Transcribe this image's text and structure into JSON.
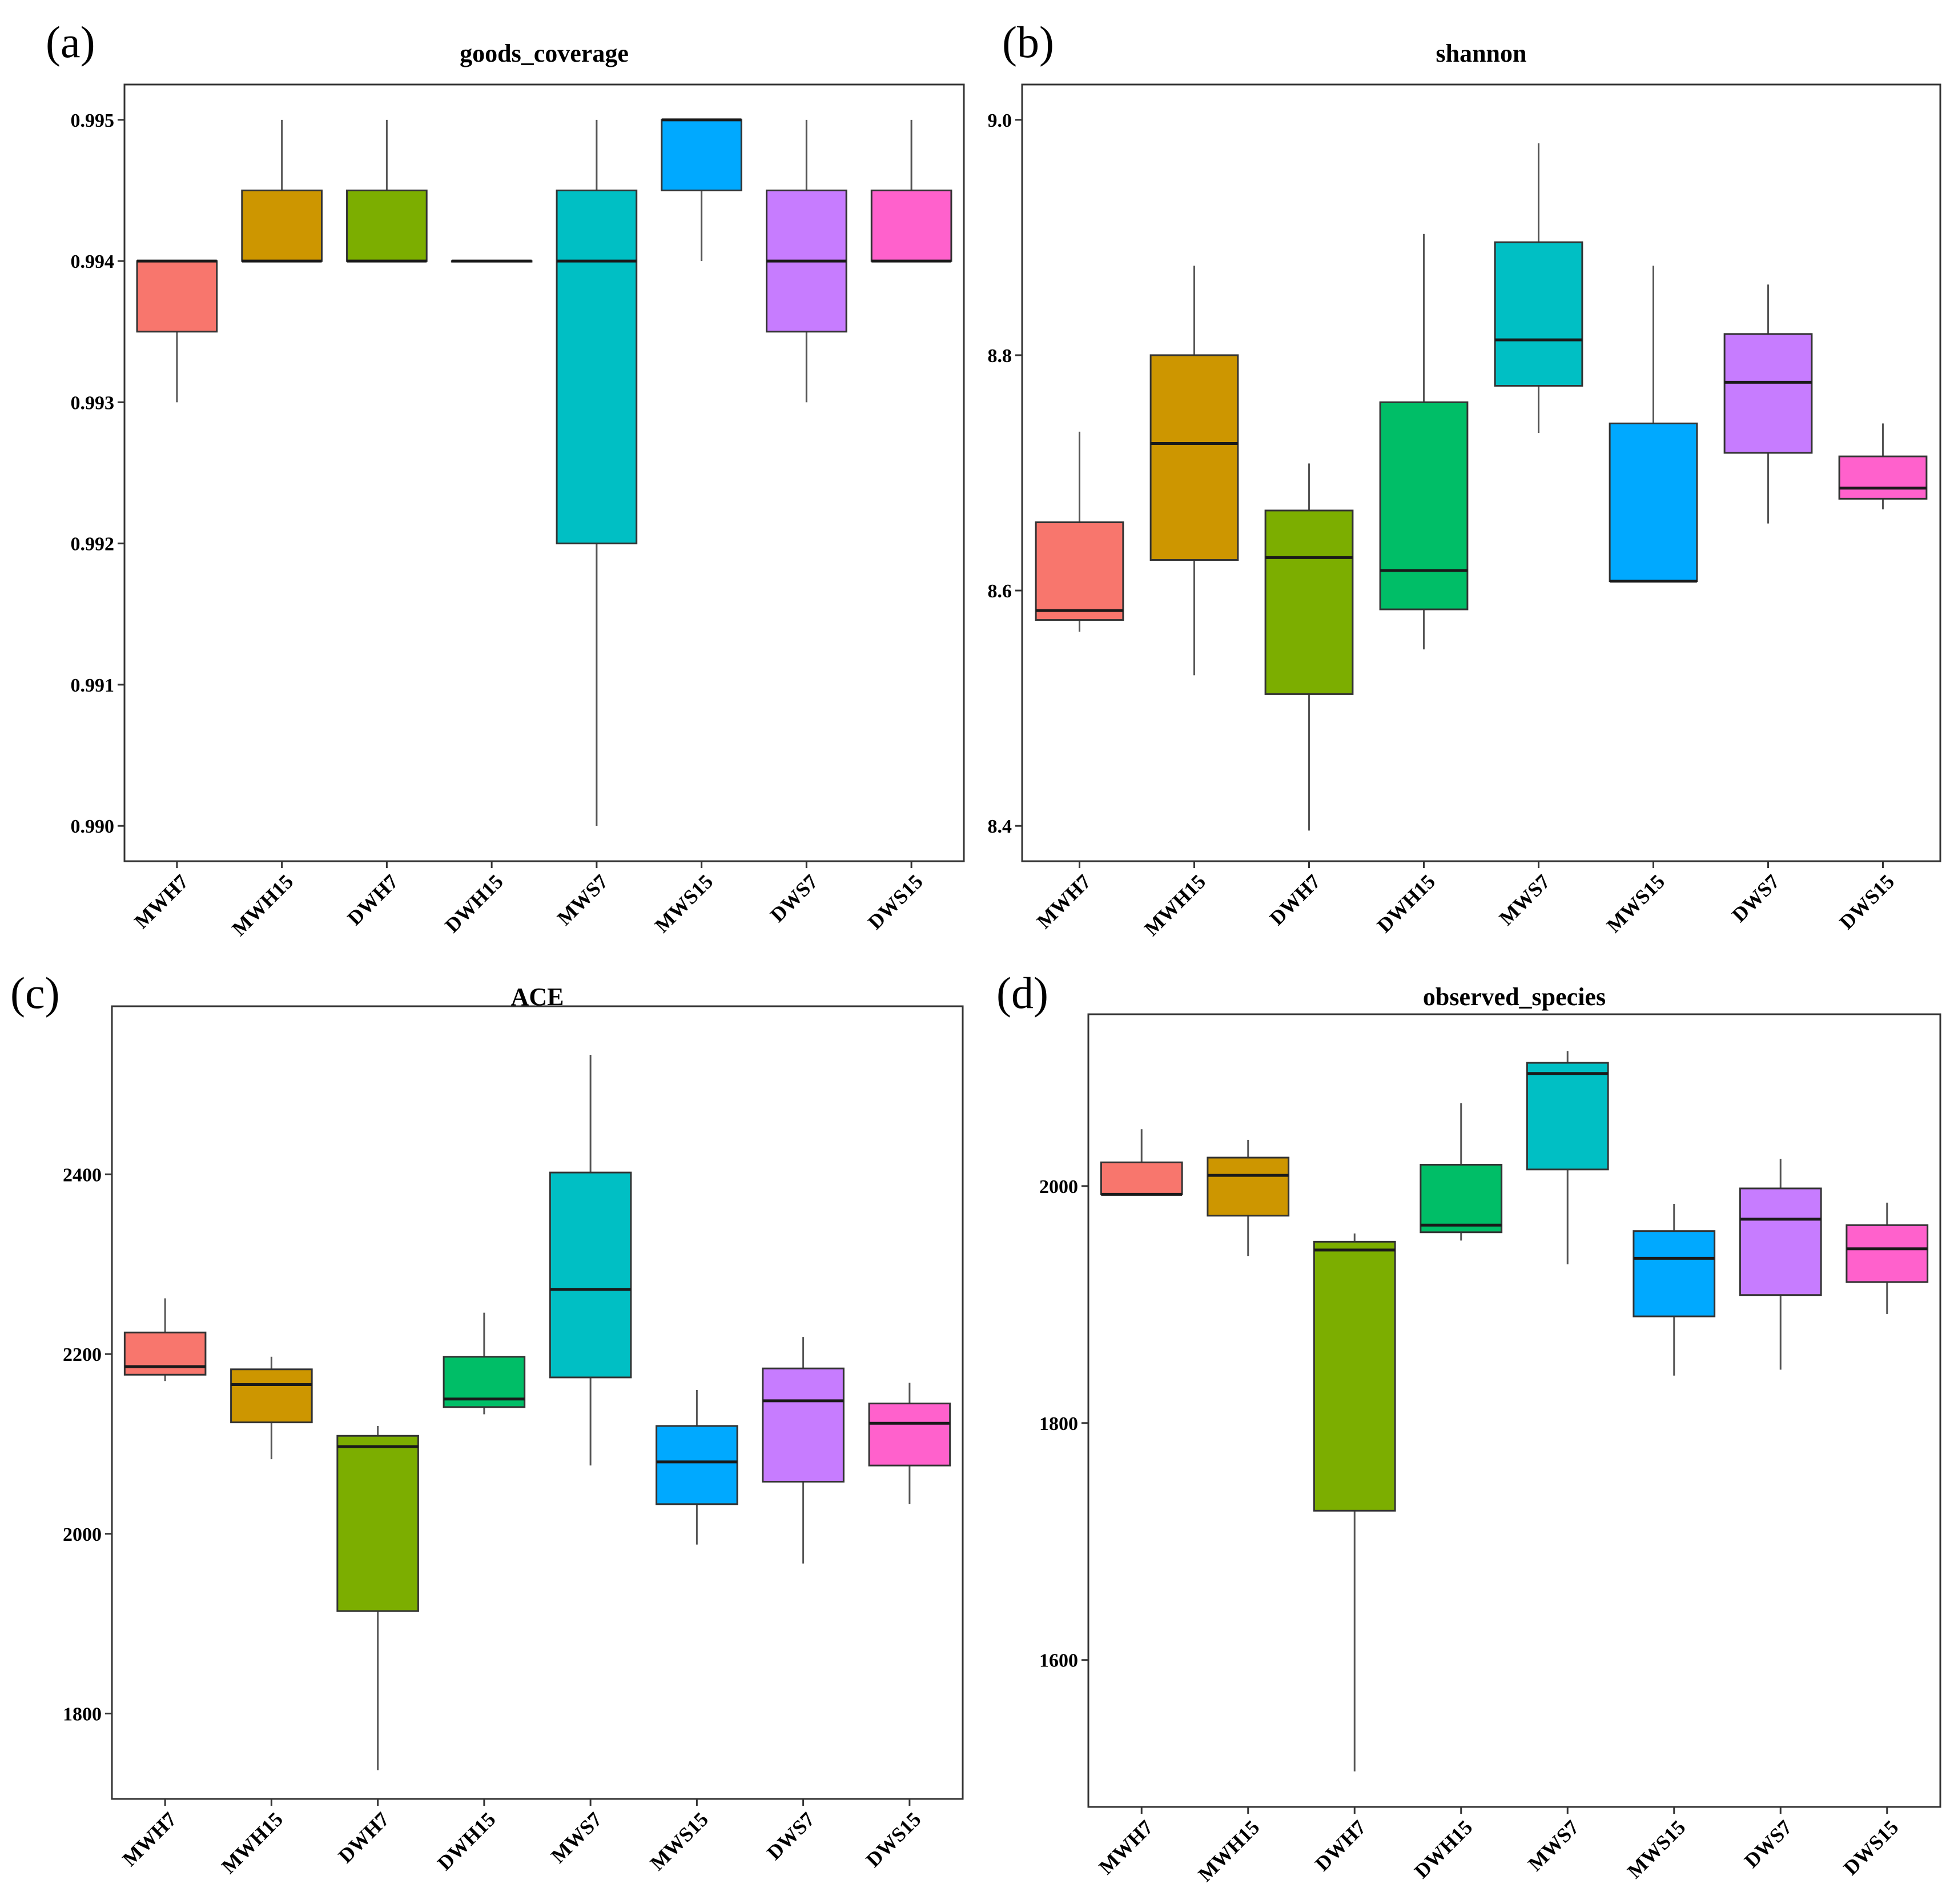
{
  "colors": {
    "MWH7": "#F8766D",
    "MWH15": "#CD9600",
    "DWH7": "#7CAE00",
    "DWH15": "#00BE67",
    "MWS7": "#00BFC4",
    "MWS15": "#00A9FF",
    "DWS7": "#C77CFF",
    "DWS15": "#FF61CC"
  },
  "chart_data": [
    {
      "panel": "(a)",
      "type": "box",
      "title": "goods_coverage",
      "categories": [
        "MWH7",
        "MWH15",
        "DWH7",
        "DWH15",
        "MWS7",
        "MWS15",
        "DWS7",
        "DWS15"
      ],
      "ylim": [
        0.98975,
        0.99525
      ],
      "yticks": [
        0.99,
        0.991,
        0.992,
        0.993,
        0.994,
        0.995
      ],
      "ytick_labels": [
        "0.990",
        "0.991",
        "0.992",
        "0.993",
        "0.994",
        "0.995"
      ],
      "grid": false,
      "boxes": [
        {
          "min": 0.993,
          "q1": 0.9935,
          "median": 0.994,
          "q3": 0.994,
          "max": 0.994
        },
        {
          "min": 0.994,
          "q1": 0.994,
          "median": 0.994,
          "q3": 0.9945,
          "max": 0.995
        },
        {
          "min": 0.994,
          "q1": 0.994,
          "median": 0.994,
          "q3": 0.9945,
          "max": 0.995
        },
        {
          "min": 0.994,
          "q1": 0.994,
          "median": 0.994,
          "q3": 0.994,
          "max": 0.994
        },
        {
          "min": 0.99,
          "q1": 0.992,
          "median": 0.994,
          "q3": 0.9945,
          "max": 0.995
        },
        {
          "min": 0.994,
          "q1": 0.9945,
          "median": 0.995,
          "q3": 0.995,
          "max": 0.995
        },
        {
          "min": 0.993,
          "q1": 0.9935,
          "median": 0.994,
          "q3": 0.9945,
          "max": 0.995
        },
        {
          "min": 0.994,
          "q1": 0.994,
          "median": 0.994,
          "q3": 0.9945,
          "max": 0.995
        }
      ]
    },
    {
      "panel": "(b)",
      "type": "box",
      "title": "shannon",
      "categories": [
        "MWH7",
        "MWH15",
        "DWH7",
        "DWH15",
        "MWS7",
        "MWS15",
        "DWS7",
        "DWS15"
      ],
      "ylim": [
        8.37,
        9.03
      ],
      "yticks": [
        8.4,
        8.6,
        8.8,
        9.0
      ],
      "ytick_labels": [
        "8.4",
        "8.6",
        "8.8",
        "9.0"
      ],
      "grid": false,
      "boxes": [
        {
          "min": 8.565,
          "q1": 8.575,
          "median": 8.583,
          "q3": 8.658,
          "max": 8.735
        },
        {
          "min": 8.528,
          "q1": 8.626,
          "median": 8.725,
          "q3": 8.8,
          "max": 8.876
        },
        {
          "min": 8.396,
          "q1": 8.512,
          "median": 8.628,
          "q3": 8.668,
          "max": 8.708
        },
        {
          "min": 8.55,
          "q1": 8.584,
          "median": 8.617,
          "q3": 8.76,
          "max": 8.903
        },
        {
          "min": 8.734,
          "q1": 8.774,
          "median": 8.813,
          "q3": 8.896,
          "max": 8.98
        },
        {
          "min": 8.608,
          "q1": 8.608,
          "median": 8.608,
          "q3": 8.742,
          "max": 8.876
        },
        {
          "min": 8.657,
          "q1": 8.717,
          "median": 8.777,
          "q3": 8.818,
          "max": 8.86
        },
        {
          "min": 8.669,
          "q1": 8.678,
          "median": 8.687,
          "q3": 8.714,
          "max": 8.742
        }
      ]
    },
    {
      "panel": "(c)",
      "type": "box",
      "title": "ACE",
      "categories": [
        "MWH7",
        "MWH15",
        "DWH7",
        "DWH15",
        "MWS7",
        "MWS15",
        "DWS7",
        "DWS15"
      ],
      "ylim": [
        1705,
        2587
      ],
      "yticks": [
        1800,
        2000,
        2200,
        2400
      ],
      "ytick_labels": [
        "1800",
        "2000",
        "2200",
        "2400"
      ],
      "grid": false,
      "boxes": [
        {
          "min": 2170,
          "q1": 2177,
          "median": 2186,
          "q3": 2224,
          "max": 2262
        },
        {
          "min": 2083,
          "q1": 2124,
          "median": 2166,
          "q3": 2183,
          "max": 2197
        },
        {
          "min": 1737,
          "q1": 1914,
          "median": 2097,
          "q3": 2109,
          "max": 2120
        },
        {
          "min": 2133,
          "q1": 2141,
          "median": 2150,
          "q3": 2197,
          "max": 2246
        },
        {
          "min": 2076,
          "q1": 2174,
          "median": 2272,
          "q3": 2402,
          "max": 2533
        },
        {
          "min": 1988,
          "q1": 2033,
          "median": 2080,
          "q3": 2120,
          "max": 2160
        },
        {
          "min": 1967,
          "q1": 2058,
          "median": 2148,
          "q3": 2184,
          "max": 2219
        },
        {
          "min": 2033,
          "q1": 2076,
          "median": 2123,
          "q3": 2145,
          "max": 2168
        }
      ]
    },
    {
      "panel": "(d)",
      "type": "box",
      "title": "observed_species",
      "categories": [
        "MWH7",
        "MWH15",
        "DWH7",
        "DWH15",
        "MWS7",
        "MWS15",
        "DWS7",
        "DWS15"
      ],
      "ylim": [
        1476,
        2145
      ],
      "yticks": [
        1600,
        1800,
        2000
      ],
      "ytick_labels": [
        "1600",
        "1800",
        "2000"
      ],
      "grid": false,
      "boxes": [
        {
          "min": 1993,
          "q1": 1993,
          "median": 1993,
          "q3": 2020,
          "max": 2048
        },
        {
          "min": 1941,
          "q1": 1975,
          "median": 2009,
          "q3": 2024,
          "max": 2039
        },
        {
          "min": 1506,
          "q1": 1726,
          "median": 1946,
          "q3": 1953,
          "max": 1960
        },
        {
          "min": 1954,
          "q1": 1961,
          "median": 1967,
          "q3": 2018,
          "max": 2070
        },
        {
          "min": 1934,
          "q1": 2014,
          "median": 2095,
          "q3": 2104,
          "max": 2114
        },
        {
          "min": 1840,
          "q1": 1890,
          "median": 1939,
          "q3": 1962,
          "max": 1985
        },
        {
          "min": 1845,
          "q1": 1908,
          "median": 1972,
          "q3": 1998,
          "max": 2023
        },
        {
          "min": 1892,
          "q1": 1919,
          "median": 1947,
          "q3": 1967,
          "max": 1986
        }
      ]
    }
  ]
}
